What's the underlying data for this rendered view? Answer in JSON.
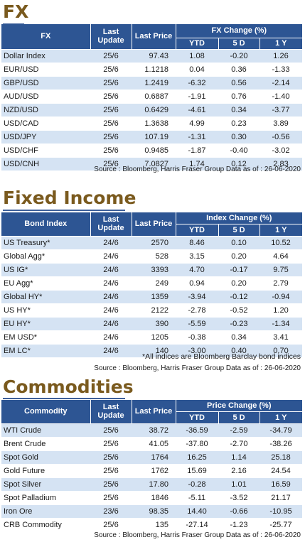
{
  "fx": {
    "title": "FX",
    "headers": {
      "name": "FX",
      "last_update": "Last Update",
      "last_price": "Last Price",
      "group": "FX Change (%)",
      "ytd": "YTD",
      "d5": "5 D",
      "y1": "1 Y"
    },
    "rows": [
      {
        "name": "Dollar Index",
        "date": "25/6",
        "price": "97.43",
        "ytd": "1.08",
        "d5": "-0.20",
        "y1": "1.26"
      },
      {
        "name": "EUR/USD",
        "date": "25/6",
        "price": "1.1218",
        "ytd": "0.04",
        "d5": "0.36",
        "y1": "-1.33"
      },
      {
        "name": "GBP/USD",
        "date": "25/6",
        "price": "1.2419",
        "ytd": "-6.32",
        "d5": "0.56",
        "y1": "-2.14"
      },
      {
        "name": "AUD/USD",
        "date": "25/6",
        "price": "0.6887",
        "ytd": "-1.91",
        "d5": "0.76",
        "y1": "-1.40"
      },
      {
        "name": "NZD/USD",
        "date": "25/6",
        "price": "0.6429",
        "ytd": "-4.61",
        "d5": "0.34",
        "y1": "-3.77"
      },
      {
        "name": "USD/CAD",
        "date": "25/6",
        "price": "1.3638",
        "ytd": "4.99",
        "d5": "0.23",
        "y1": "3.89"
      },
      {
        "name": "USD/JPY",
        "date": "25/6",
        "price": "107.19",
        "ytd": "-1.31",
        "d5": "0.30",
        "y1": "-0.56"
      },
      {
        "name": "USD/CHF",
        "date": "25/6",
        "price": "0.9485",
        "ytd": "-1.87",
        "d5": "-0.40",
        "y1": "-3.02"
      },
      {
        "name": "USD/CNH",
        "date": "25/6",
        "price": "7.0827",
        "ytd": "1.74",
        "d5": "0.12",
        "y1": "2.83"
      }
    ],
    "source": "Source : Bloomberg, Harris Fraser Group Data as of : 26-06-2020"
  },
  "fixed_income": {
    "title": "Fixed Income",
    "headers": {
      "name": "Bond Index",
      "last_update": "Last Update",
      "last_price": "Last Price",
      "group": "Index Change (%)",
      "ytd": "YTD",
      "d5": "5 D",
      "y1": "1 Y"
    },
    "rows": [
      {
        "name": "US Treasury*",
        "date": "24/6",
        "price": "2570",
        "ytd": "8.46",
        "d5": "0.10",
        "y1": "10.52"
      },
      {
        "name": "Global Agg*",
        "date": "24/6",
        "price": "528",
        "ytd": "3.15",
        "d5": "0.20",
        "y1": "4.64"
      },
      {
        "name": "US IG*",
        "date": "24/6",
        "price": "3393",
        "ytd": "4.70",
        "d5": "-0.17",
        "y1": "9.75"
      },
      {
        "name": "EU Agg*",
        "date": "24/6",
        "price": "249",
        "ytd": "0.94",
        "d5": "0.20",
        "y1": "2.79"
      },
      {
        "name": "Global HY*",
        "date": "24/6",
        "price": "1359",
        "ytd": "-3.94",
        "d5": "-0.12",
        "y1": "-0.94"
      },
      {
        "name": "US HY*",
        "date": "24/6",
        "price": "2122",
        "ytd": "-2.78",
        "d5": "-0.52",
        "y1": "1.20"
      },
      {
        "name": "EU HY*",
        "date": "24/6",
        "price": "390",
        "ytd": "-5.59",
        "d5": "-0.23",
        "y1": "-1.34"
      },
      {
        "name": "EM USD*",
        "date": "24/6",
        "price": "1205",
        "ytd": "-0.38",
        "d5": "0.34",
        "y1": "3.41"
      },
      {
        "name": "EM LC*",
        "date": "24/6",
        "price": "140",
        "ytd": "-3.00",
        "d5": "0.40",
        "y1": "0.70"
      }
    ],
    "note": "*All indices are Bloomberg Barclay bond indices",
    "source": "Source : Bloomberg, Harris Fraser Group Data as of : 26-06-2020"
  },
  "commodities": {
    "title": "Commodities",
    "headers": {
      "name": "Commodity",
      "last_update": "Last Update",
      "last_price": "Last Price",
      "group": "Price Change (%)",
      "ytd": "YTD",
      "d5": "5 D",
      "y1": "1 Y"
    },
    "rows": [
      {
        "name": "WTI Crude",
        "date": "25/6",
        "price": "38.72",
        "ytd": "-36.59",
        "d5": "-2.59",
        "y1": "-34.79"
      },
      {
        "name": "Brent Crude",
        "date": "25/6",
        "price": "41.05",
        "ytd": "-37.80",
        "d5": "-2.70",
        "y1": "-38.26"
      },
      {
        "name": "Spot Gold",
        "date": "25/6",
        "price": "1764",
        "ytd": "16.25",
        "d5": "1.14",
        "y1": "25.18"
      },
      {
        "name": "Gold Future",
        "date": "25/6",
        "price": "1762",
        "ytd": "15.69",
        "d5": "2.16",
        "y1": "24.54"
      },
      {
        "name": "Spot Silver",
        "date": "25/6",
        "price": "17.80",
        "ytd": "-0.28",
        "d5": "1.01",
        "y1": "16.59"
      },
      {
        "name": "Spot Palladium",
        "date": "25/6",
        "price": "1846",
        "ytd": "-5.11",
        "d5": "-3.52",
        "y1": "21.17"
      },
      {
        "name": "Iron Ore",
        "date": "23/6",
        "price": "98.35",
        "ytd": "14.40",
        "d5": "-0.66",
        "y1": "-10.95"
      },
      {
        "name": "CRB Commodity",
        "date": "25/6",
        "price": "135",
        "ytd": "-27.14",
        "d5": "-1.23",
        "y1": "-25.77"
      }
    ],
    "source": "Source : Bloomberg, Harris Fraser Group Data as of : 26-06-2020"
  },
  "colors": {
    "header_blue": "#2d5593",
    "stripe_blue": "#d5e3f3",
    "title_brown": "#7a5a1e"
  }
}
